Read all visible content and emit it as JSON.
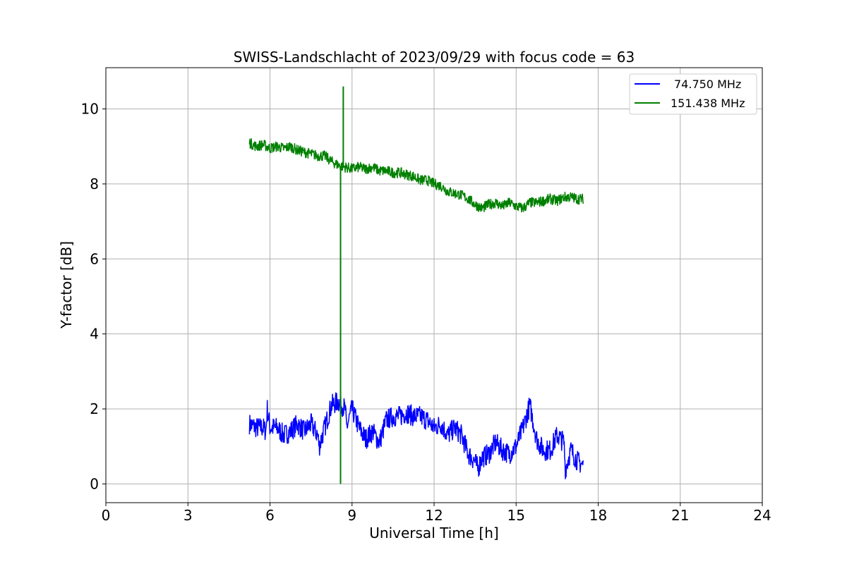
{
  "chart_data": {
    "type": "line",
    "title": "SWISS-Landschlacht of 2023/09/29 with focus code = 63",
    "xlabel": "Universal Time [h]",
    "ylabel": "Y-factor [dB]",
    "xlim": [
      0,
      24
    ],
    "ylim": [
      -0.5,
      11.1
    ],
    "xticks": [
      0,
      3,
      6,
      9,
      12,
      15,
      18,
      21,
      24
    ],
    "yticks": [
      0,
      2,
      4,
      6,
      8,
      10
    ],
    "grid": true,
    "legend_position": "top-right",
    "series": [
      {
        "name": "74.750 MHz",
        "color": "#0000ff",
        "x": [
          5.25,
          5.5,
          5.75,
          5.85,
          5.9,
          6.0,
          6.25,
          6.5,
          6.75,
          7.0,
          7.25,
          7.5,
          7.75,
          7.8,
          8.0,
          8.25,
          8.5,
          8.75,
          8.8,
          9.0,
          9.25,
          9.5,
          9.75,
          10.0,
          10.25,
          10.5,
          10.75,
          11.0,
          11.25,
          11.5,
          11.75,
          12.0,
          12.25,
          12.5,
          12.75,
          13.0,
          13.25,
          13.5,
          13.6,
          13.75,
          14.0,
          14.25,
          14.5,
          14.75,
          15.0,
          15.25,
          15.5,
          15.75,
          15.9,
          16.0,
          16.25,
          16.5,
          16.75,
          16.8,
          17.0,
          17.25,
          17.45
        ],
        "y": [
          1.6,
          1.5,
          1.5,
          1.4,
          2.0,
          1.5,
          1.5,
          1.3,
          1.4,
          1.6,
          1.4,
          1.6,
          1.3,
          1.0,
          1.5,
          2.1,
          2.2,
          2.0,
          1.5,
          2.0,
          1.5,
          1.2,
          1.4,
          1.1,
          1.7,
          1.8,
          1.8,
          1.9,
          1.8,
          1.8,
          1.7,
          1.5,
          1.6,
          1.3,
          1.5,
          1.3,
          0.8,
          0.6,
          0.4,
          0.7,
          0.8,
          1.1,
          0.9,
          0.8,
          1.0,
          1.5,
          2.1,
          1.2,
          1.0,
          0.9,
          0.9,
          1.3,
          1.1,
          0.4,
          0.9,
          0.6,
          0.5
        ]
      },
      {
        "name": "151.438 MHz",
        "color": "#008000",
        "x": [
          5.25,
          5.5,
          5.75,
          6.0,
          6.25,
          6.5,
          6.75,
          7.0,
          7.25,
          7.5,
          7.75,
          8.0,
          8.25,
          8.5,
          8.75,
          9.0,
          9.25,
          9.5,
          9.75,
          10.0,
          10.25,
          10.5,
          10.75,
          11.0,
          11.25,
          11.5,
          11.75,
          12.0,
          12.25,
          12.5,
          12.75,
          13.0,
          13.25,
          13.5,
          13.75,
          14.0,
          14.25,
          14.5,
          14.75,
          15.0,
          15.25,
          15.5,
          15.75,
          16.0,
          16.25,
          16.5,
          16.75,
          17.0,
          17.25,
          17.45
        ],
        "y": [
          9.1,
          9.0,
          9.05,
          8.95,
          9.0,
          8.95,
          9.0,
          8.9,
          8.85,
          8.8,
          8.75,
          8.75,
          8.6,
          8.5,
          8.45,
          8.4,
          8.45,
          8.4,
          8.45,
          8.35,
          8.35,
          8.3,
          8.3,
          8.25,
          8.2,
          8.1,
          8.1,
          8.0,
          7.95,
          7.8,
          7.75,
          7.7,
          7.6,
          7.45,
          7.35,
          7.45,
          7.5,
          7.4,
          7.5,
          7.4,
          7.35,
          7.5,
          7.5,
          7.55,
          7.6,
          7.55,
          7.65,
          7.65,
          7.6,
          7.6
        ]
      }
    ],
    "annotations": [
      {
        "series": "151.438 MHz",
        "x": 8.58,
        "y_from": 8.4,
        "y_to": 0.0,
        "kind": "drop"
      },
      {
        "series": "151.438 MHz",
        "x": 8.68,
        "y_from": 8.5,
        "y_to": 10.6,
        "kind": "spike"
      }
    ]
  }
}
